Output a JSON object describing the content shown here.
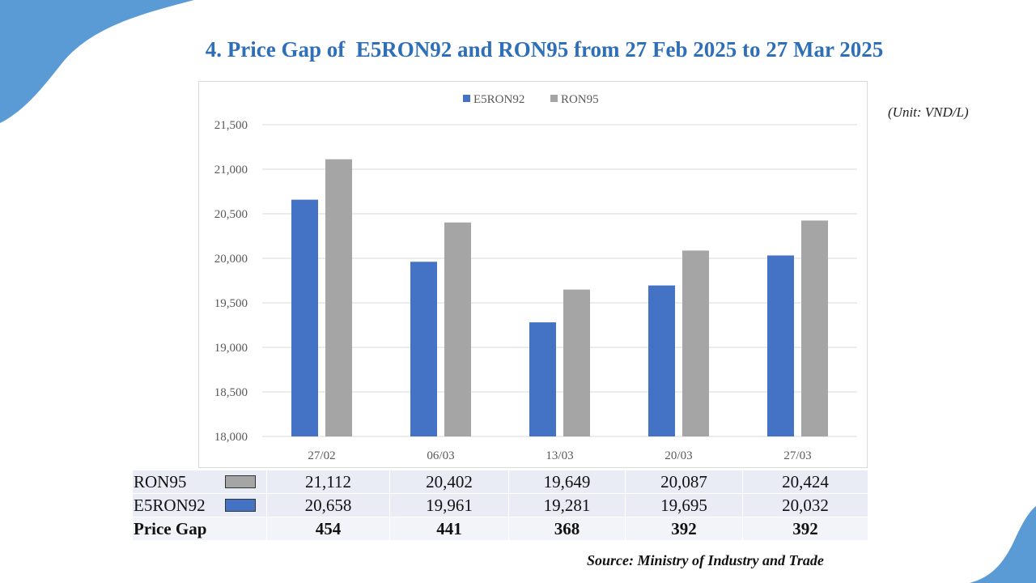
{
  "title": "4. Price Gap of  E5RON92 and RON95 from 27 Feb 2025 to 27 Mar 2025",
  "unit": "(Unit: VND/L)",
  "source": "Source: Ministry of Industry and Trade",
  "colors": {
    "title": "#2f6fb7",
    "e5ron92": "#4472c4",
    "ron95": "#a5a5a5",
    "decor": "#5b9bd5"
  },
  "chart_data": {
    "type": "bar",
    "categories": [
      "27/02",
      "06/03",
      "13/03",
      "20/03",
      "27/03"
    ],
    "series": [
      {
        "name": "E5RON92",
        "values": [
          20658,
          19961,
          19281,
          19695,
          20032
        ],
        "color": "#4472c4"
      },
      {
        "name": "RON95",
        "values": [
          21112,
          20402,
          19649,
          20087,
          20424
        ],
        "color": "#a5a5a5"
      }
    ],
    "ylim": [
      18000,
      21500
    ],
    "yticks": [
      18000,
      18500,
      19000,
      19500,
      20000,
      20500,
      21000,
      21500
    ],
    "ytick_labels": [
      "18,000",
      "18,500",
      "19,000",
      "19,500",
      "20,000",
      "20,500",
      "21,000",
      "21,500"
    ],
    "legend_position": "top-center",
    "grid": true
  },
  "table": {
    "rows": [
      {
        "label": "RON95",
        "swatch": "#a5a5a5",
        "values": [
          "21,112",
          "20,402",
          "19,649",
          "20,087",
          "20,424"
        ]
      },
      {
        "label": "E5RON92",
        "swatch": "#4472c4",
        "values": [
          "20,658",
          "19,961",
          "19,281",
          "19,695",
          "20,032"
        ]
      },
      {
        "label": "Price Gap",
        "values": [
          "454",
          "441",
          "368",
          "392",
          "392"
        ]
      }
    ]
  }
}
